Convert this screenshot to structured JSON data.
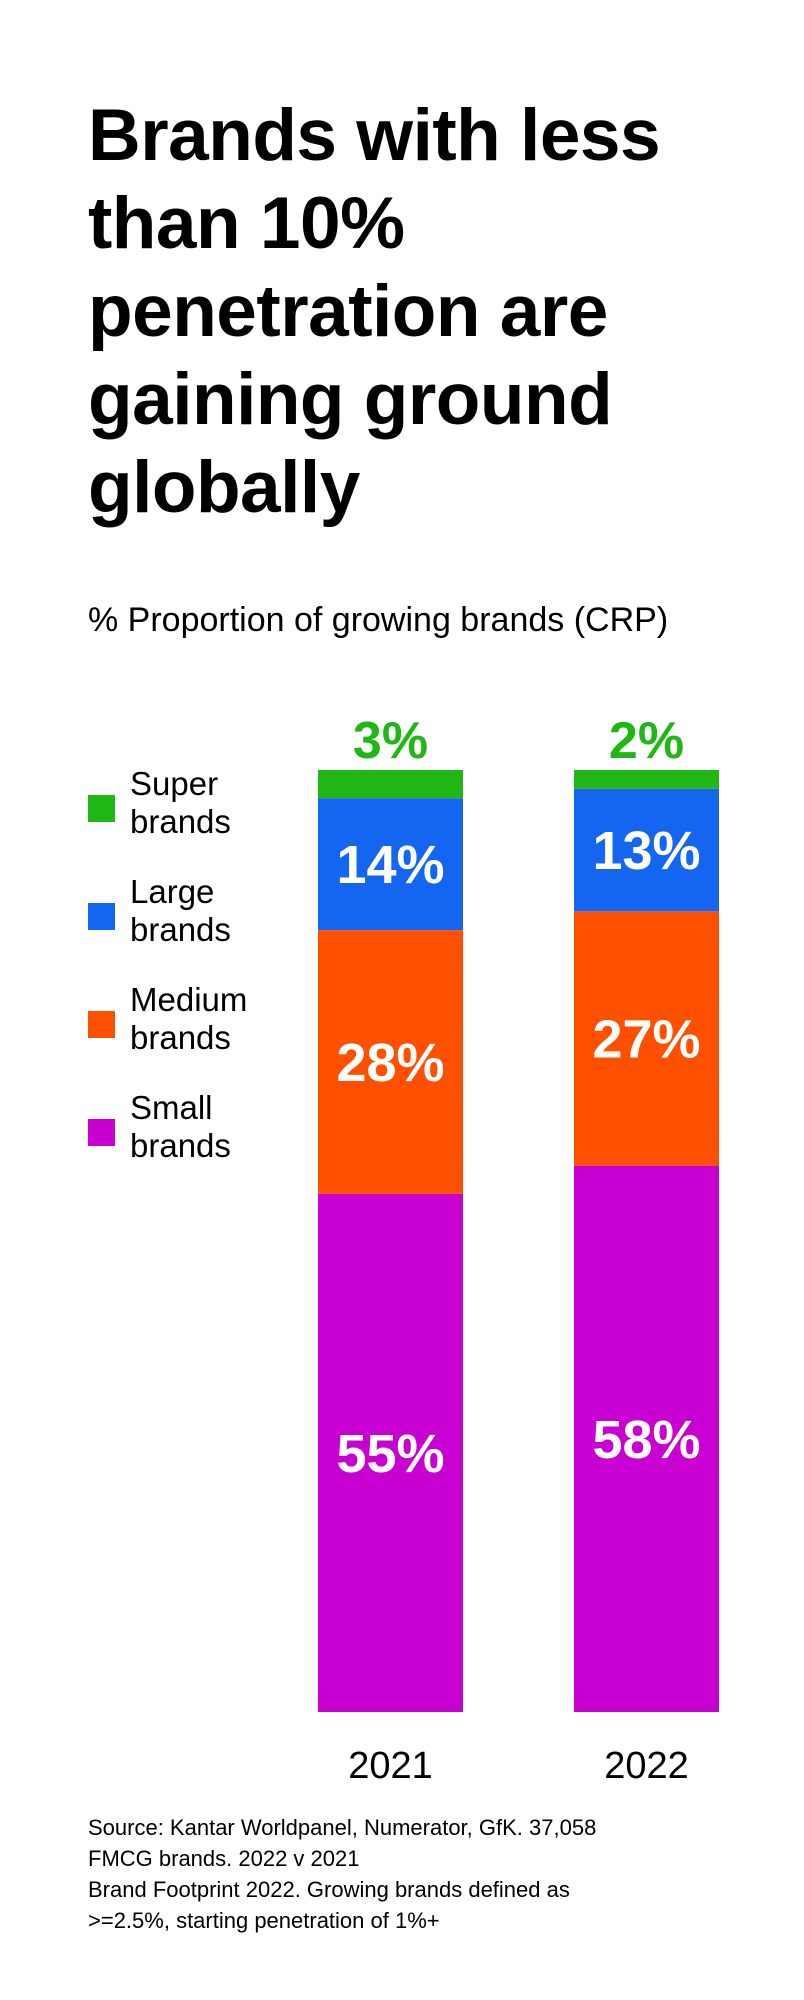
{
  "title": "Brands with less\nthan 10%\npenetration are\ngaining ground\nglobally",
  "subtitle": "% Proportion of growing brands (CRP)",
  "source": "Source: Kantar Worldpanel, Numerator, GfK. 37,058\nFMCG brands. 2022 v 2021\nBrand Footprint 2022. Growing brands defined as\n>=2.5%, starting penetration of 1%+",
  "legend": [
    {
      "label": "Super\nbrands",
      "color": "#1fb714"
    },
    {
      "label": "Large\nbrands",
      "color": "#1466f0"
    },
    {
      "label": "Medium\nbrands",
      "color": "#ff5000"
    },
    {
      "label": "Small\nbrands",
      "color": "#c800d2"
    }
  ],
  "chart_data": {
    "type": "bar",
    "stacked": true,
    "categories": [
      "2021",
      "2022"
    ],
    "series": [
      {
        "name": "Small brands",
        "color": "#c800d2",
        "values": [
          55,
          58
        ],
        "labels": [
          "55%",
          "58%"
        ]
      },
      {
        "name": "Medium brands",
        "color": "#ff5000",
        "values": [
          28,
          27
        ],
        "labels": [
          "28%",
          "27%"
        ]
      },
      {
        "name": "Large brands",
        "color": "#1466f0",
        "values": [
          14,
          13
        ],
        "labels": [
          "14%",
          "13%"
        ]
      },
      {
        "name": "Super brands",
        "color": "#1fb714",
        "values": [
          3,
          2
        ],
        "labels": [
          "3%",
          "2%"
        ]
      }
    ],
    "title": "Brands with less than 10% penetration are gaining ground globally",
    "subtitle": "% Proportion of growing brands (CRP)",
    "ylim": [
      0,
      100
    ],
    "legend_position": "left",
    "grid": false
  }
}
